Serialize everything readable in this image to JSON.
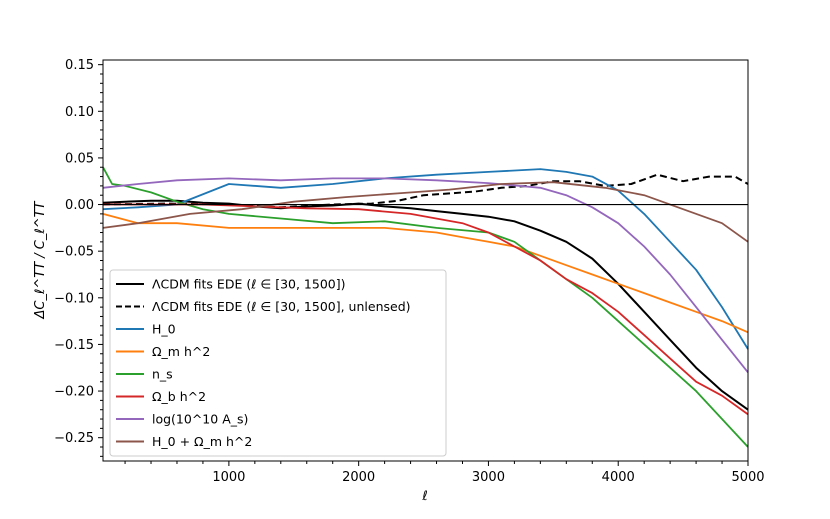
{
  "chart_data": {
    "type": "line",
    "title": "",
    "xlabel": "ℓ",
    "ylabel": "ΔC_ℓ^TT / C_ℓ^TT",
    "xlim": [
      30,
      5000
    ],
    "ylim": [
      -0.275,
      0.155
    ],
    "x_ticks": [
      1000,
      2000,
      3000,
      4000,
      5000
    ],
    "x_tick_labels": [
      "1000",
      "2000",
      "3000",
      "4000",
      "5000"
    ],
    "y_ticks": [
      -0.25,
      -0.2,
      -0.15,
      -0.1,
      -0.05,
      0.0,
      0.05,
      0.1,
      0.15
    ],
    "y_tick_labels": [
      "−0.25",
      "−0.20",
      "−0.15",
      "−0.10",
      "−0.05",
      "0.00",
      "0.05",
      "0.10",
      "0.15"
    ],
    "zero_line": 0.0,
    "grid": false,
    "legend_position": "lower-left",
    "series": [
      {
        "name": "ΛCDM fits EDE (ℓ ∈ [30, 1500])",
        "color": "#000000",
        "dash": "solid",
        "x": [
          30,
          200,
          400,
          600,
          800,
          1000,
          1200,
          1400,
          1600,
          1800,
          2000,
          2200,
          2400,
          2600,
          2800,
          3000,
          3200,
          3400,
          3600,
          3800,
          4000,
          4200,
          4400,
          4600,
          4800,
          5000
        ],
        "y": [
          0.002,
          0.003,
          0.004,
          0.004,
          0.002,
          0.001,
          -0.002,
          -0.004,
          -0.002,
          -0.001,
          0.001,
          -0.002,
          -0.004,
          -0.007,
          -0.01,
          -0.013,
          -0.018,
          -0.028,
          -0.04,
          -0.058,
          -0.085,
          -0.115,
          -0.145,
          -0.175,
          -0.2,
          -0.22
        ]
      },
      {
        "name": "ΛCDM fits EDE (ℓ ∈ [30, 1500], unlensed)",
        "color": "#000000",
        "dash": "dashed",
        "x": [
          30,
          500,
          1000,
          1400,
          1800,
          2100,
          2300,
          2500,
          2700,
          2900,
          3100,
          3300,
          3500,
          3700,
          3900,
          4100,
          4300,
          4500,
          4700,
          4900,
          5000
        ],
        "y": [
          0.0,
          0.001,
          0.0,
          -0.003,
          0.0,
          0.001,
          0.004,
          0.01,
          0.012,
          0.014,
          0.018,
          0.02,
          0.025,
          0.025,
          0.02,
          0.022,
          0.032,
          0.025,
          0.03,
          0.03,
          0.022
        ]
      },
      {
        "name": "H_0",
        "color": "#1f77b4",
        "dash": "solid",
        "x": [
          30,
          300,
          600,
          1000,
          1400,
          1800,
          2200,
          2600,
          3000,
          3400,
          3600,
          3800,
          4000,
          4200,
          4400,
          4600,
          4800,
          5000
        ],
        "y": [
          -0.005,
          -0.003,
          0.0,
          0.022,
          0.018,
          0.022,
          0.028,
          0.032,
          0.035,
          0.038,
          0.035,
          0.03,
          0.015,
          -0.01,
          -0.04,
          -0.07,
          -0.11,
          -0.155
        ]
      },
      {
        "name": "Ω_m h^2",
        "color": "#ff7f0e",
        "dash": "solid",
        "x": [
          30,
          300,
          600,
          1000,
          1400,
          1800,
          2200,
          2600,
          2800,
          3000,
          3200,
          3400,
          3600,
          3800,
          4000,
          4200,
          4400,
          4600,
          4800,
          5000
        ],
        "y": [
          -0.01,
          -0.02,
          -0.02,
          -0.025,
          -0.025,
          -0.025,
          -0.025,
          -0.03,
          -0.035,
          -0.04,
          -0.045,
          -0.055,
          -0.065,
          -0.075,
          -0.085,
          -0.095,
          -0.105,
          -0.115,
          -0.125,
          -0.137
        ]
      },
      {
        "name": "n_s",
        "color": "#2ca02c",
        "dash": "solid",
        "x": [
          30,
          100,
          200,
          400,
          600,
          800,
          1000,
          1400,
          1800,
          2200,
          2600,
          3000,
          3200,
          3400,
          3600,
          3800,
          4000,
          4200,
          4400,
          4600,
          4800,
          5000
        ],
        "y": [
          0.04,
          0.022,
          0.02,
          0.013,
          0.003,
          -0.005,
          -0.01,
          -0.015,
          -0.02,
          -0.018,
          -0.025,
          -0.03,
          -0.04,
          -0.06,
          -0.08,
          -0.1,
          -0.125,
          -0.15,
          -0.175,
          -0.2,
          -0.23,
          -0.26
        ]
      },
      {
        "name": "Ω_b h^2",
        "color": "#d62728",
        "dash": "solid",
        "x": [
          30,
          400,
          800,
          1200,
          1600,
          2000,
          2400,
          2800,
          3000,
          3200,
          3400,
          3600,
          3800,
          4000,
          4200,
          4400,
          4600,
          4800,
          5000
        ],
        "y": [
          0.0,
          0.0,
          0.0,
          -0.002,
          -0.004,
          -0.005,
          -0.01,
          -0.02,
          -0.03,
          -0.045,
          -0.06,
          -0.08,
          -0.095,
          -0.115,
          -0.14,
          -0.165,
          -0.19,
          -0.205,
          -0.225
        ]
      },
      {
        "name": "log(10^10 A_s)",
        "color": "#9467bd",
        "dash": "solid",
        "x": [
          30,
          300,
          600,
          1000,
          1400,
          1800,
          2200,
          2600,
          3000,
          3400,
          3600,
          3800,
          4000,
          4200,
          4400,
          4600,
          4800,
          5000
        ],
        "y": [
          0.018,
          0.022,
          0.026,
          0.028,
          0.026,
          0.028,
          0.028,
          0.026,
          0.023,
          0.018,
          0.01,
          -0.003,
          -0.02,
          -0.045,
          -0.075,
          -0.11,
          -0.145,
          -0.18
        ]
      },
      {
        "name": "H_0 + Ω_m h^2",
        "color": "#8c564b",
        "dash": "solid",
        "x": [
          30,
          300,
          700,
          1100,
          1500,
          1900,
          2300,
          2700,
          3100,
          3500,
          3900,
          4200,
          4500,
          4800,
          5000
        ],
        "y": [
          -0.025,
          -0.02,
          -0.01,
          -0.005,
          0.003,
          0.008,
          0.012,
          0.016,
          0.022,
          0.024,
          0.018,
          0.01,
          -0.005,
          -0.02,
          -0.04
        ]
      }
    ]
  }
}
